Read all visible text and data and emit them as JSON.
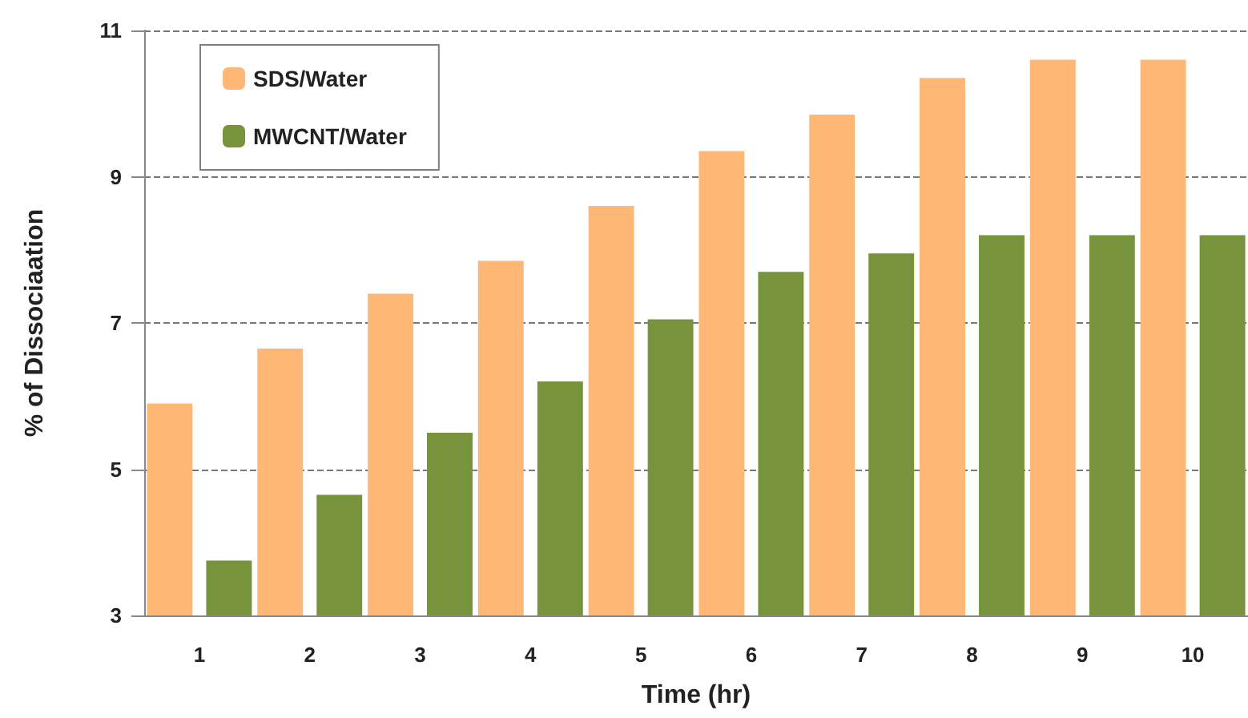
{
  "chart_data": {
    "type": "bar",
    "xlabel": "Time (hr)",
    "ylabel": "% of Dissociaation",
    "categories": [
      "1",
      "2",
      "3",
      "4",
      "5",
      "6",
      "7",
      "8",
      "9",
      "10"
    ],
    "series": [
      {
        "name": "SDS/Water",
        "color": "#ffb775",
        "values": [
          5.9,
          6.65,
          7.4,
          7.85,
          8.6,
          9.35,
          9.85,
          10.35,
          10.6,
          10.6
        ]
      },
      {
        "name": "MWCNT/Water",
        "color": "#77933c",
        "values": [
          3.75,
          4.65,
          5.5,
          6.2,
          7.05,
          7.7,
          7.95,
          8.2,
          8.2,
          8.2
        ]
      }
    ],
    "ylim": [
      3,
      11
    ],
    "yticks": [
      3,
      5,
      7,
      9,
      11
    ],
    "grid": "y",
    "legend": "top left"
  }
}
